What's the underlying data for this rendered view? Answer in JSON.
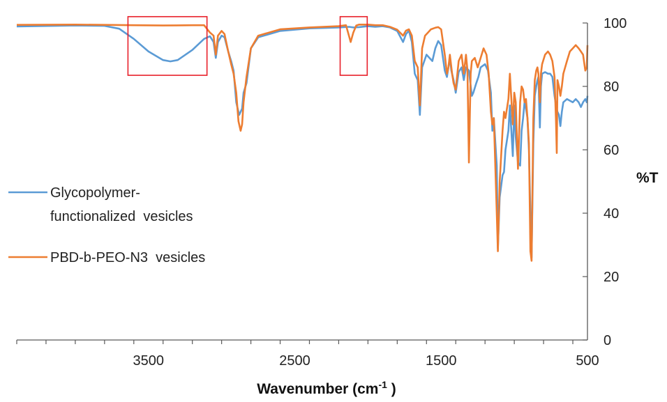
{
  "chart_data": {
    "type": "line",
    "title": "",
    "xlabel": "Wavenumber (cm",
    "xlabel_sup": "-1",
    "xlabel_end": " )",
    "ylabel": "%T",
    "xlim": [
      4400,
      500
    ],
    "ylim": [
      0,
      100
    ],
    "x_reversed": true,
    "y_axis_position": "right",
    "grid": false,
    "x_ticks": [
      3500,
      2500,
      1500,
      500
    ],
    "x_tick_labels": [
      "3500",
      "2500",
      "1500",
      "500"
    ],
    "x_minor_tick_step": 200,
    "y_ticks": [
      0,
      20,
      40,
      60,
      80,
      100
    ],
    "y_tick_labels": [
      "0",
      "20",
      "40",
      "60",
      "80",
      "100"
    ],
    "legend_position": "left",
    "series": [
      {
        "name": "Glycopolymer-functionalized  vesicles",
        "name_lines": [
          "Glycopolymer-",
          "functionalized  vesicles"
        ],
        "color": "#5B9BD5",
        "points": [
          [
            4400,
            98.9
          ],
          [
            4000,
            99.2
          ],
          [
            3800,
            99.1
          ],
          [
            3700,
            98.2
          ],
          [
            3600,
            95
          ],
          [
            3500,
            91
          ],
          [
            3400,
            88.3
          ],
          [
            3350,
            87.9
          ],
          [
            3300,
            88.3
          ],
          [
            3200,
            91.5
          ],
          [
            3120,
            95
          ],
          [
            3080,
            95.8
          ],
          [
            3055,
            94
          ],
          [
            3040,
            89
          ],
          [
            3025,
            94
          ],
          [
            3000,
            96
          ],
          [
            2980,
            95.5
          ],
          [
            2955,
            91
          ],
          [
            2935,
            88
          ],
          [
            2918,
            85
          ],
          [
            2900,
            75
          ],
          [
            2880,
            71
          ],
          [
            2860,
            73
          ],
          [
            2850,
            78
          ],
          [
            2830,
            81
          ],
          [
            2800,
            92
          ],
          [
            2750,
            95.5
          ],
          [
            2600,
            97.5
          ],
          [
            2400,
            98.3
          ],
          [
            2200,
            98.6
          ],
          [
            2130,
            98.8
          ],
          [
            2100,
            98.6
          ],
          [
            2060,
            98.7
          ],
          [
            2000,
            99
          ],
          [
            1950,
            98.8
          ],
          [
            1900,
            99
          ],
          [
            1850,
            98.6
          ],
          [
            1800,
            97.5
          ],
          [
            1760,
            94
          ],
          [
            1740,
            96.5
          ],
          [
            1720,
            97.6
          ],
          [
            1700,
            94
          ],
          [
            1680,
            84
          ],
          [
            1660,
            82
          ],
          [
            1645,
            71
          ],
          [
            1630,
            86
          ],
          [
            1600,
            90
          ],
          [
            1580,
            89
          ],
          [
            1560,
            88
          ],
          [
            1540,
            92
          ],
          [
            1520,
            94.3
          ],
          [
            1500,
            93
          ],
          [
            1475,
            85
          ],
          [
            1460,
            83
          ],
          [
            1450,
            86
          ],
          [
            1440,
            89
          ],
          [
            1430,
            85
          ],
          [
            1415,
            82
          ],
          [
            1400,
            78
          ],
          [
            1380,
            84.5
          ],
          [
            1360,
            86
          ],
          [
            1345,
            82
          ],
          [
            1330,
            86
          ],
          [
            1310,
            85
          ],
          [
            1290,
            77
          ],
          [
            1280,
            78
          ],
          [
            1260,
            81
          ],
          [
            1245,
            83
          ],
          [
            1230,
            86
          ],
          [
            1200,
            87
          ],
          [
            1180,
            85
          ],
          [
            1160,
            78
          ],
          [
            1150,
            66
          ],
          [
            1140,
            70
          ],
          [
            1120,
            55
          ],
          [
            1112,
            29
          ],
          [
            1100,
            45
          ],
          [
            1080,
            52
          ],
          [
            1070,
            53
          ],
          [
            1060,
            60
          ],
          [
            1040,
            66
          ],
          [
            1030,
            74
          ],
          [
            1020,
            66
          ],
          [
            1010,
            58
          ],
          [
            1000,
            74
          ],
          [
            990,
            64
          ],
          [
            975,
            56
          ],
          [
            960,
            55
          ],
          [
            950,
            66
          ],
          [
            940,
            70
          ],
          [
            930,
            75
          ],
          [
            920,
            73
          ],
          [
            910,
            70
          ],
          [
            900,
            60
          ],
          [
            890,
            40
          ],
          [
            882,
            26
          ],
          [
            870,
            62
          ],
          [
            860,
            77
          ],
          [
            850,
            80
          ],
          [
            842,
            82
          ],
          [
            835,
            83
          ],
          [
            825,
            67
          ],
          [
            818,
            80
          ],
          [
            810,
            84
          ],
          [
            790,
            84.5
          ],
          [
            770,
            84
          ],
          [
            755,
            84
          ],
          [
            740,
            83
          ],
          [
            725,
            77
          ],
          [
            715,
            74
          ],
          [
            705,
            72
          ],
          [
            695,
            71
          ],
          [
            685,
            67.5
          ],
          [
            675,
            72
          ],
          [
            665,
            75
          ],
          [
            640,
            76
          ],
          [
            620,
            75.5
          ],
          [
            600,
            75
          ],
          [
            580,
            76
          ],
          [
            560,
            75
          ],
          [
            545,
            73.5
          ],
          [
            530,
            75
          ],
          [
            515,
            76
          ],
          [
            505,
            75
          ],
          [
            500,
            77
          ]
        ]
      },
      {
        "name": "PBD-b-PEO-N3  vesicles",
        "name_lines": [
          "PBD-b-PEO-N3  vesicles"
        ],
        "color": "#ED7D31",
        "points": [
          [
            4400,
            99.4
          ],
          [
            4000,
            99.5
          ],
          [
            3800,
            99.4
          ],
          [
            3600,
            99.3
          ],
          [
            3400,
            99.2
          ],
          [
            3200,
            99.3
          ],
          [
            3120,
            99.3
          ],
          [
            3080,
            97
          ],
          [
            3055,
            96
          ],
          [
            3040,
            90
          ],
          [
            3025,
            96
          ],
          [
            3000,
            97.5
          ],
          [
            2980,
            96.5
          ],
          [
            2955,
            91
          ],
          [
            2935,
            87
          ],
          [
            2918,
            84
          ],
          [
            2900,
            78
          ],
          [
            2885,
            69
          ],
          [
            2870,
            66
          ],
          [
            2860,
            68
          ],
          [
            2850,
            75
          ],
          [
            2830,
            83
          ],
          [
            2800,
            92
          ],
          [
            2750,
            96
          ],
          [
            2600,
            98
          ],
          [
            2400,
            98.6
          ],
          [
            2200,
            99
          ],
          [
            2150,
            99.3
          ],
          [
            2130,
            96
          ],
          [
            2118,
            94
          ],
          [
            2100,
            97
          ],
          [
            2080,
            99.2
          ],
          [
            2060,
            99.5
          ],
          [
            2000,
            99.5
          ],
          [
            1950,
            99.3
          ],
          [
            1900,
            99.3
          ],
          [
            1850,
            98.8
          ],
          [
            1800,
            97.9
          ],
          [
            1760,
            96
          ],
          [
            1740,
            97.6
          ],
          [
            1720,
            98
          ],
          [
            1700,
            96
          ],
          [
            1680,
            88
          ],
          [
            1660,
            86
          ],
          [
            1645,
            74
          ],
          [
            1630,
            92
          ],
          [
            1610,
            96
          ],
          [
            1590,
            97
          ],
          [
            1570,
            98
          ],
          [
            1540,
            98.5
          ],
          [
            1520,
            98.7
          ],
          [
            1500,
            98
          ],
          [
            1475,
            90
          ],
          [
            1460,
            84
          ],
          [
            1450,
            86
          ],
          [
            1440,
            90
          ],
          [
            1425,
            84
          ],
          [
            1415,
            81
          ],
          [
            1400,
            79
          ],
          [
            1380,
            88
          ],
          [
            1360,
            90
          ],
          [
            1345,
            84
          ],
          [
            1330,
            90
          ],
          [
            1320,
            85
          ],
          [
            1310,
            56
          ],
          [
            1298,
            84
          ],
          [
            1290,
            88
          ],
          [
            1270,
            89
          ],
          [
            1250,
            86
          ],
          [
            1230,
            89
          ],
          [
            1210,
            92
          ],
          [
            1190,
            90
          ],
          [
            1175,
            84
          ],
          [
            1160,
            72
          ],
          [
            1150,
            68
          ],
          [
            1140,
            70
          ],
          [
            1120,
            40
          ],
          [
            1112,
            28
          ],
          [
            1100,
            50
          ],
          [
            1080,
            66
          ],
          [
            1070,
            72
          ],
          [
            1060,
            70
          ],
          [
            1040,
            76
          ],
          [
            1030,
            84
          ],
          [
            1020,
            76
          ],
          [
            1010,
            68
          ],
          [
            1000,
            78
          ],
          [
            990,
            75
          ],
          [
            975,
            54
          ],
          [
            960,
            75
          ],
          [
            950,
            80
          ],
          [
            940,
            79
          ],
          [
            930,
            75
          ],
          [
            920,
            76
          ],
          [
            910,
            70
          ],
          [
            900,
            62
          ],
          [
            890,
            28
          ],
          [
            882,
            25
          ],
          [
            870,
            70
          ],
          [
            860,
            82
          ],
          [
            850,
            85
          ],
          [
            842,
            86
          ],
          [
            835,
            84
          ],
          [
            825,
            75
          ],
          [
            818,
            84
          ],
          [
            810,
            87
          ],
          [
            790,
            90
          ],
          [
            770,
            91
          ],
          [
            755,
            90
          ],
          [
            740,
            88
          ],
          [
            725,
            83
          ],
          [
            715,
            69
          ],
          [
            710,
            59
          ],
          [
            705,
            82
          ],
          [
            695,
            80
          ],
          [
            685,
            77
          ],
          [
            675,
            80
          ],
          [
            665,
            84
          ],
          [
            640,
            88
          ],
          [
            620,
            91
          ],
          [
            600,
            92
          ],
          [
            580,
            93
          ],
          [
            560,
            92
          ],
          [
            545,
            91
          ],
          [
            530,
            90
          ],
          [
            515,
            85
          ],
          [
            505,
            86
          ],
          [
            500,
            93
          ]
        ]
      }
    ],
    "annotations": [
      {
        "type": "highlight-box",
        "color": "#E8202A",
        "x_range": [
          3640,
          3100
        ],
        "y_range": [
          83.5,
          102
        ]
      },
      {
        "type": "highlight-box",
        "color": "#E8202A",
        "x_range": [
          2190,
          2005
        ],
        "y_range": [
          83.5,
          102
        ]
      }
    ]
  }
}
